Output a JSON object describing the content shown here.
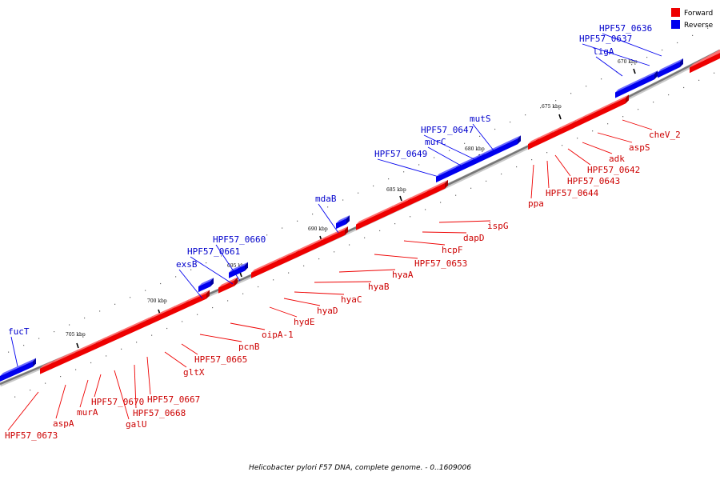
{
  "caption": "Helicobacter pylori F57 DNA, complete genome. - 0..1609006",
  "legend": [
    {
      "label": "Forward",
      "color": "#ee0000"
    },
    {
      "label": "Reverse",
      "color": "#0000ee"
    }
  ],
  "colors": {
    "forward": "#ee0000",
    "forward_top": "#ff7070",
    "forward_dark": "#a80000",
    "reverse": "#0000ee",
    "reverse_top": "#6a6aff",
    "reverse_dark": "#0000a0",
    "backbone": "#777777",
    "forward_label": "#cc0000",
    "reverse_label": "#0000cc"
  },
  "scale": {
    "ticks": [
      "705 kbp",
      "700 kbp",
      "695 kbp",
      "690 kbp",
      "685 kbp",
      "680 kbp",
      "675 kbp",
      "670 kbp"
    ]
  },
  "genes": [
    {
      "name": "HPF57_0673",
      "strand": "forward"
    },
    {
      "name": "aspA",
      "strand": "forward"
    },
    {
      "name": "murA",
      "strand": "forward"
    },
    {
      "name": "HPF57_0670",
      "strand": "forward"
    },
    {
      "name": "galU",
      "strand": "forward"
    },
    {
      "name": "HPF57_0668",
      "strand": "forward"
    },
    {
      "name": "HPF57_0667",
      "strand": "forward"
    },
    {
      "name": "gltX",
      "strand": "forward"
    },
    {
      "name": "HPF57_0665",
      "strand": "forward"
    },
    {
      "name": "pcnB",
      "strand": "forward"
    },
    {
      "name": "oipA-1",
      "strand": "forward"
    },
    {
      "name": "hydE",
      "strand": "forward"
    },
    {
      "name": "hyaD",
      "strand": "forward"
    },
    {
      "name": "hyaC",
      "strand": "forward"
    },
    {
      "name": "hyaB",
      "strand": "forward"
    },
    {
      "name": "hyaA",
      "strand": "forward"
    },
    {
      "name": "HPF57_0653",
      "strand": "forward"
    },
    {
      "name": "hcpF",
      "strand": "forward"
    },
    {
      "name": "dapD",
      "strand": "forward"
    },
    {
      "name": "ispG",
      "strand": "forward"
    },
    {
      "name": "ppa",
      "strand": "forward"
    },
    {
      "name": "HPF57_0644",
      "strand": "forward"
    },
    {
      "name": "HPF57_0643",
      "strand": "forward"
    },
    {
      "name": "HPF57_0642",
      "strand": "forward"
    },
    {
      "name": "adk",
      "strand": "forward"
    },
    {
      "name": "aspS",
      "strand": "forward"
    },
    {
      "name": "cheV_2",
      "strand": "forward"
    },
    {
      "name": "fucT",
      "strand": "reverse"
    },
    {
      "name": "exsB",
      "strand": "reverse"
    },
    {
      "name": "HPF57_0661",
      "strand": "reverse"
    },
    {
      "name": "HPF57_0660",
      "strand": "reverse"
    },
    {
      "name": "mdaB",
      "strand": "reverse"
    },
    {
      "name": "HPF57_0649",
      "strand": "reverse"
    },
    {
      "name": "murC",
      "strand": "reverse"
    },
    {
      "name": "HPF57_0647",
      "strand": "reverse"
    },
    {
      "name": "mutS",
      "strand": "reverse"
    },
    {
      "name": "ligA",
      "strand": "reverse"
    },
    {
      "name": "HPF57_0637",
      "strand": "reverse"
    },
    {
      "name": "HPF57_0636",
      "strand": "reverse"
    }
  ]
}
